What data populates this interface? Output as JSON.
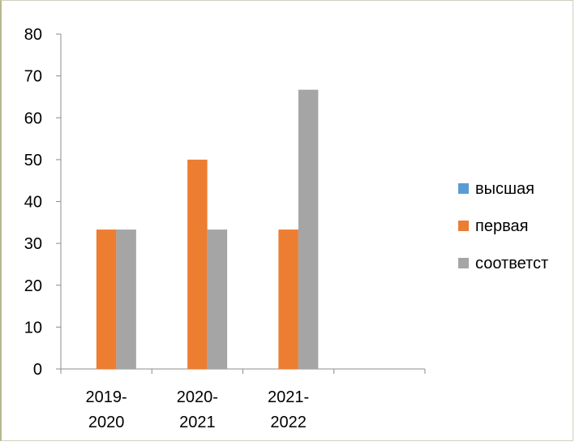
{
  "chart_data": {
    "type": "bar",
    "title": "",
    "xlabel": "",
    "ylabel": "",
    "categories": [
      [
        "2019-",
        "2020"
      ],
      [
        "2020-",
        "2021"
      ],
      [
        "2021-",
        "2022"
      ],
      [
        "",
        ""
      ]
    ],
    "series": [
      {
        "name": "высшая",
        "color": "#5b9bd5",
        "values": [
          0,
          0,
          0,
          0
        ]
      },
      {
        "name": "первая",
        "color": "#ed7d31",
        "values": [
          33.3,
          50,
          33.3,
          0
        ]
      },
      {
        "name": "соответст",
        "color": "#a5a5a5",
        "values": [
          33.3,
          33.3,
          66.7,
          0
        ]
      }
    ],
    "ylim": [
      0,
      80
    ],
    "yticks": [
      "0",
      "10",
      "20",
      "30",
      "40",
      "50",
      "60",
      "70",
      "80"
    ],
    "grid": false,
    "legend_position": "right"
  }
}
